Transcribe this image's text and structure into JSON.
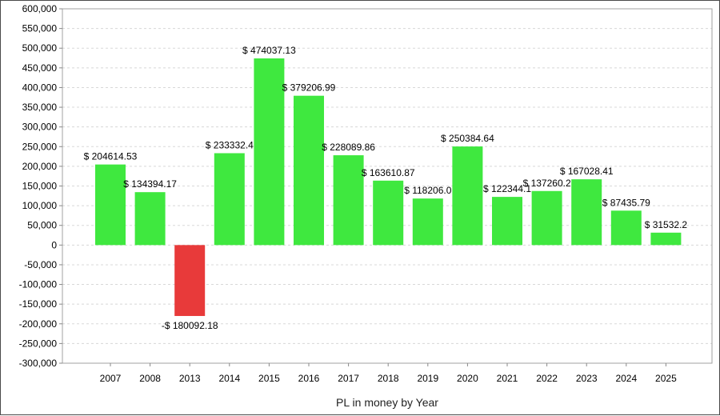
{
  "chart_data": {
    "type": "bar",
    "title": "",
    "xlabel": "PL in money by Year",
    "ylabel": "",
    "categories": [
      "2007",
      "2008",
      "2013",
      "2014",
      "2015",
      "2016",
      "2017",
      "2018",
      "2019",
      "2020",
      "2021",
      "2022",
      "2023",
      "2024",
      "2025"
    ],
    "values": [
      204614.53,
      134394.17,
      -180092.18,
      233332.4,
      474037.13,
      379206.99,
      228089.86,
      163610.87,
      118206.0,
      250384.64,
      122344.1,
      137260.2,
      167028.41,
      87435.79,
      31532.2
    ],
    "data_labels": [
      "$ 204614.53",
      "$ 134394.17",
      "-$ 180092.18",
      "$ 233332.4",
      "$ 474037.13",
      "$ 379206.99",
      "$ 228089.86",
      "$ 163610.87",
      "$ 118206.0",
      "$ 250384.64",
      "$ 122344.1",
      "$ 137260.2",
      "$ 167028.41",
      "$ 87435.79",
      "$ 31532.2"
    ],
    "ylim": [
      -300000,
      600000
    ],
    "yticks": [
      "600,000",
      "550,000",
      "500,000",
      "450,000",
      "400,000",
      "350,000",
      "300,000",
      "250,000",
      "200,000",
      "150,000",
      "100,000",
      "50,000",
      "0",
      "-50,000",
      "-100,000",
      "-150,000",
      "-200,000",
      "-250,000",
      "-300,000"
    ],
    "ytick_values": [
      600000,
      550000,
      500000,
      450000,
      400000,
      350000,
      300000,
      250000,
      200000,
      150000,
      100000,
      50000,
      0,
      -50000,
      -100000,
      -150000,
      -200000,
      -250000,
      -300000
    ],
    "grid": true,
    "legend": "none",
    "colors": {
      "positive": "#3fe83f",
      "negative": "#e83a3a",
      "grid": "#d8d8d8",
      "axis": "#888888"
    }
  }
}
